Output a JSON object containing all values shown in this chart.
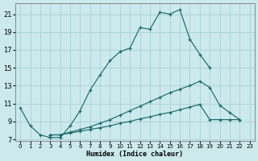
{
  "xlabel": "Humidex (Indice chaleur)",
  "background_color": "#cce9ec",
  "grid_color": "#add5da",
  "line_color": "#1c6b6b",
  "xlim": [
    -0.5,
    23.5
  ],
  "ylim": [
    6.8,
    22.2
  ],
  "xticks": [
    0,
    1,
    2,
    3,
    4,
    5,
    6,
    7,
    8,
    9,
    10,
    11,
    12,
    13,
    14,
    15,
    16,
    17,
    18,
    19,
    20,
    21,
    22,
    23
  ],
  "yticks": [
    7,
    9,
    11,
    13,
    15,
    17,
    19,
    21
  ],
  "series1_x": [
    0,
    1,
    2,
    3,
    4,
    5,
    6,
    7,
    8,
    9,
    10,
    11,
    12,
    13,
    14,
    15,
    16,
    17,
    18,
    19
  ],
  "series1_y": [
    10.5,
    8.5,
    7.5,
    7.2,
    7.2,
    8.5,
    10.2,
    12.5,
    14.2,
    15.8,
    16.8,
    17.2,
    19.5,
    19.3,
    21.2,
    21.0,
    21.5,
    18.2,
    16.5,
    15.0
  ],
  "series2_x": [
    3,
    4,
    5,
    6,
    7,
    8,
    9,
    10,
    11,
    12,
    13,
    14,
    15,
    16,
    17,
    18,
    19,
    20,
    21,
    22
  ],
  "series2_y": [
    7.5,
    7.5,
    7.8,
    8.1,
    8.4,
    8.8,
    9.2,
    9.7,
    10.2,
    10.7,
    11.2,
    11.7,
    12.2,
    12.6,
    13.0,
    13.5,
    12.8,
    10.8,
    10.0,
    9.2
  ],
  "series3_x": [
    3,
    4,
    5,
    6,
    7,
    8,
    9,
    10,
    11,
    12,
    13,
    14,
    15,
    16,
    17,
    18,
    19,
    20,
    21,
    22
  ],
  "series3_y": [
    7.5,
    7.5,
    7.7,
    7.9,
    8.1,
    8.3,
    8.5,
    8.8,
    9.0,
    9.3,
    9.5,
    9.8,
    10.0,
    10.3,
    10.6,
    10.9,
    9.2,
    9.2,
    9.2,
    9.2
  ]
}
